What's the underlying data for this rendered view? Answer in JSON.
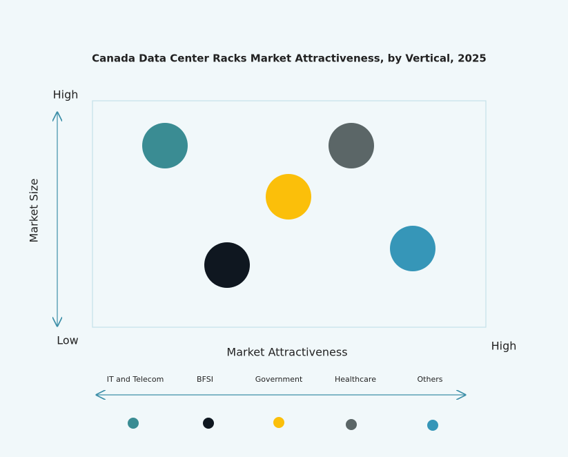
{
  "title": "Canada Data Center Racks Market Attractiveness,  by Vertical, 2025",
  "y_axis": {
    "label": "Market Size",
    "high": "High",
    "low": "Low"
  },
  "x_axis": {
    "label": "Market Attractiveness",
    "high": "High"
  },
  "items": [
    {
      "name": "IT and Telecom",
      "color": "#3a8c93"
    },
    {
      "name": "BFSI",
      "color": "#0f1720"
    },
    {
      "name": "Government",
      "color": "#fbbf0a"
    },
    {
      "name": "Healthcare",
      "color": "#5b6667"
    },
    {
      "name": "Others",
      "color": "#3696b8"
    }
  ]
}
